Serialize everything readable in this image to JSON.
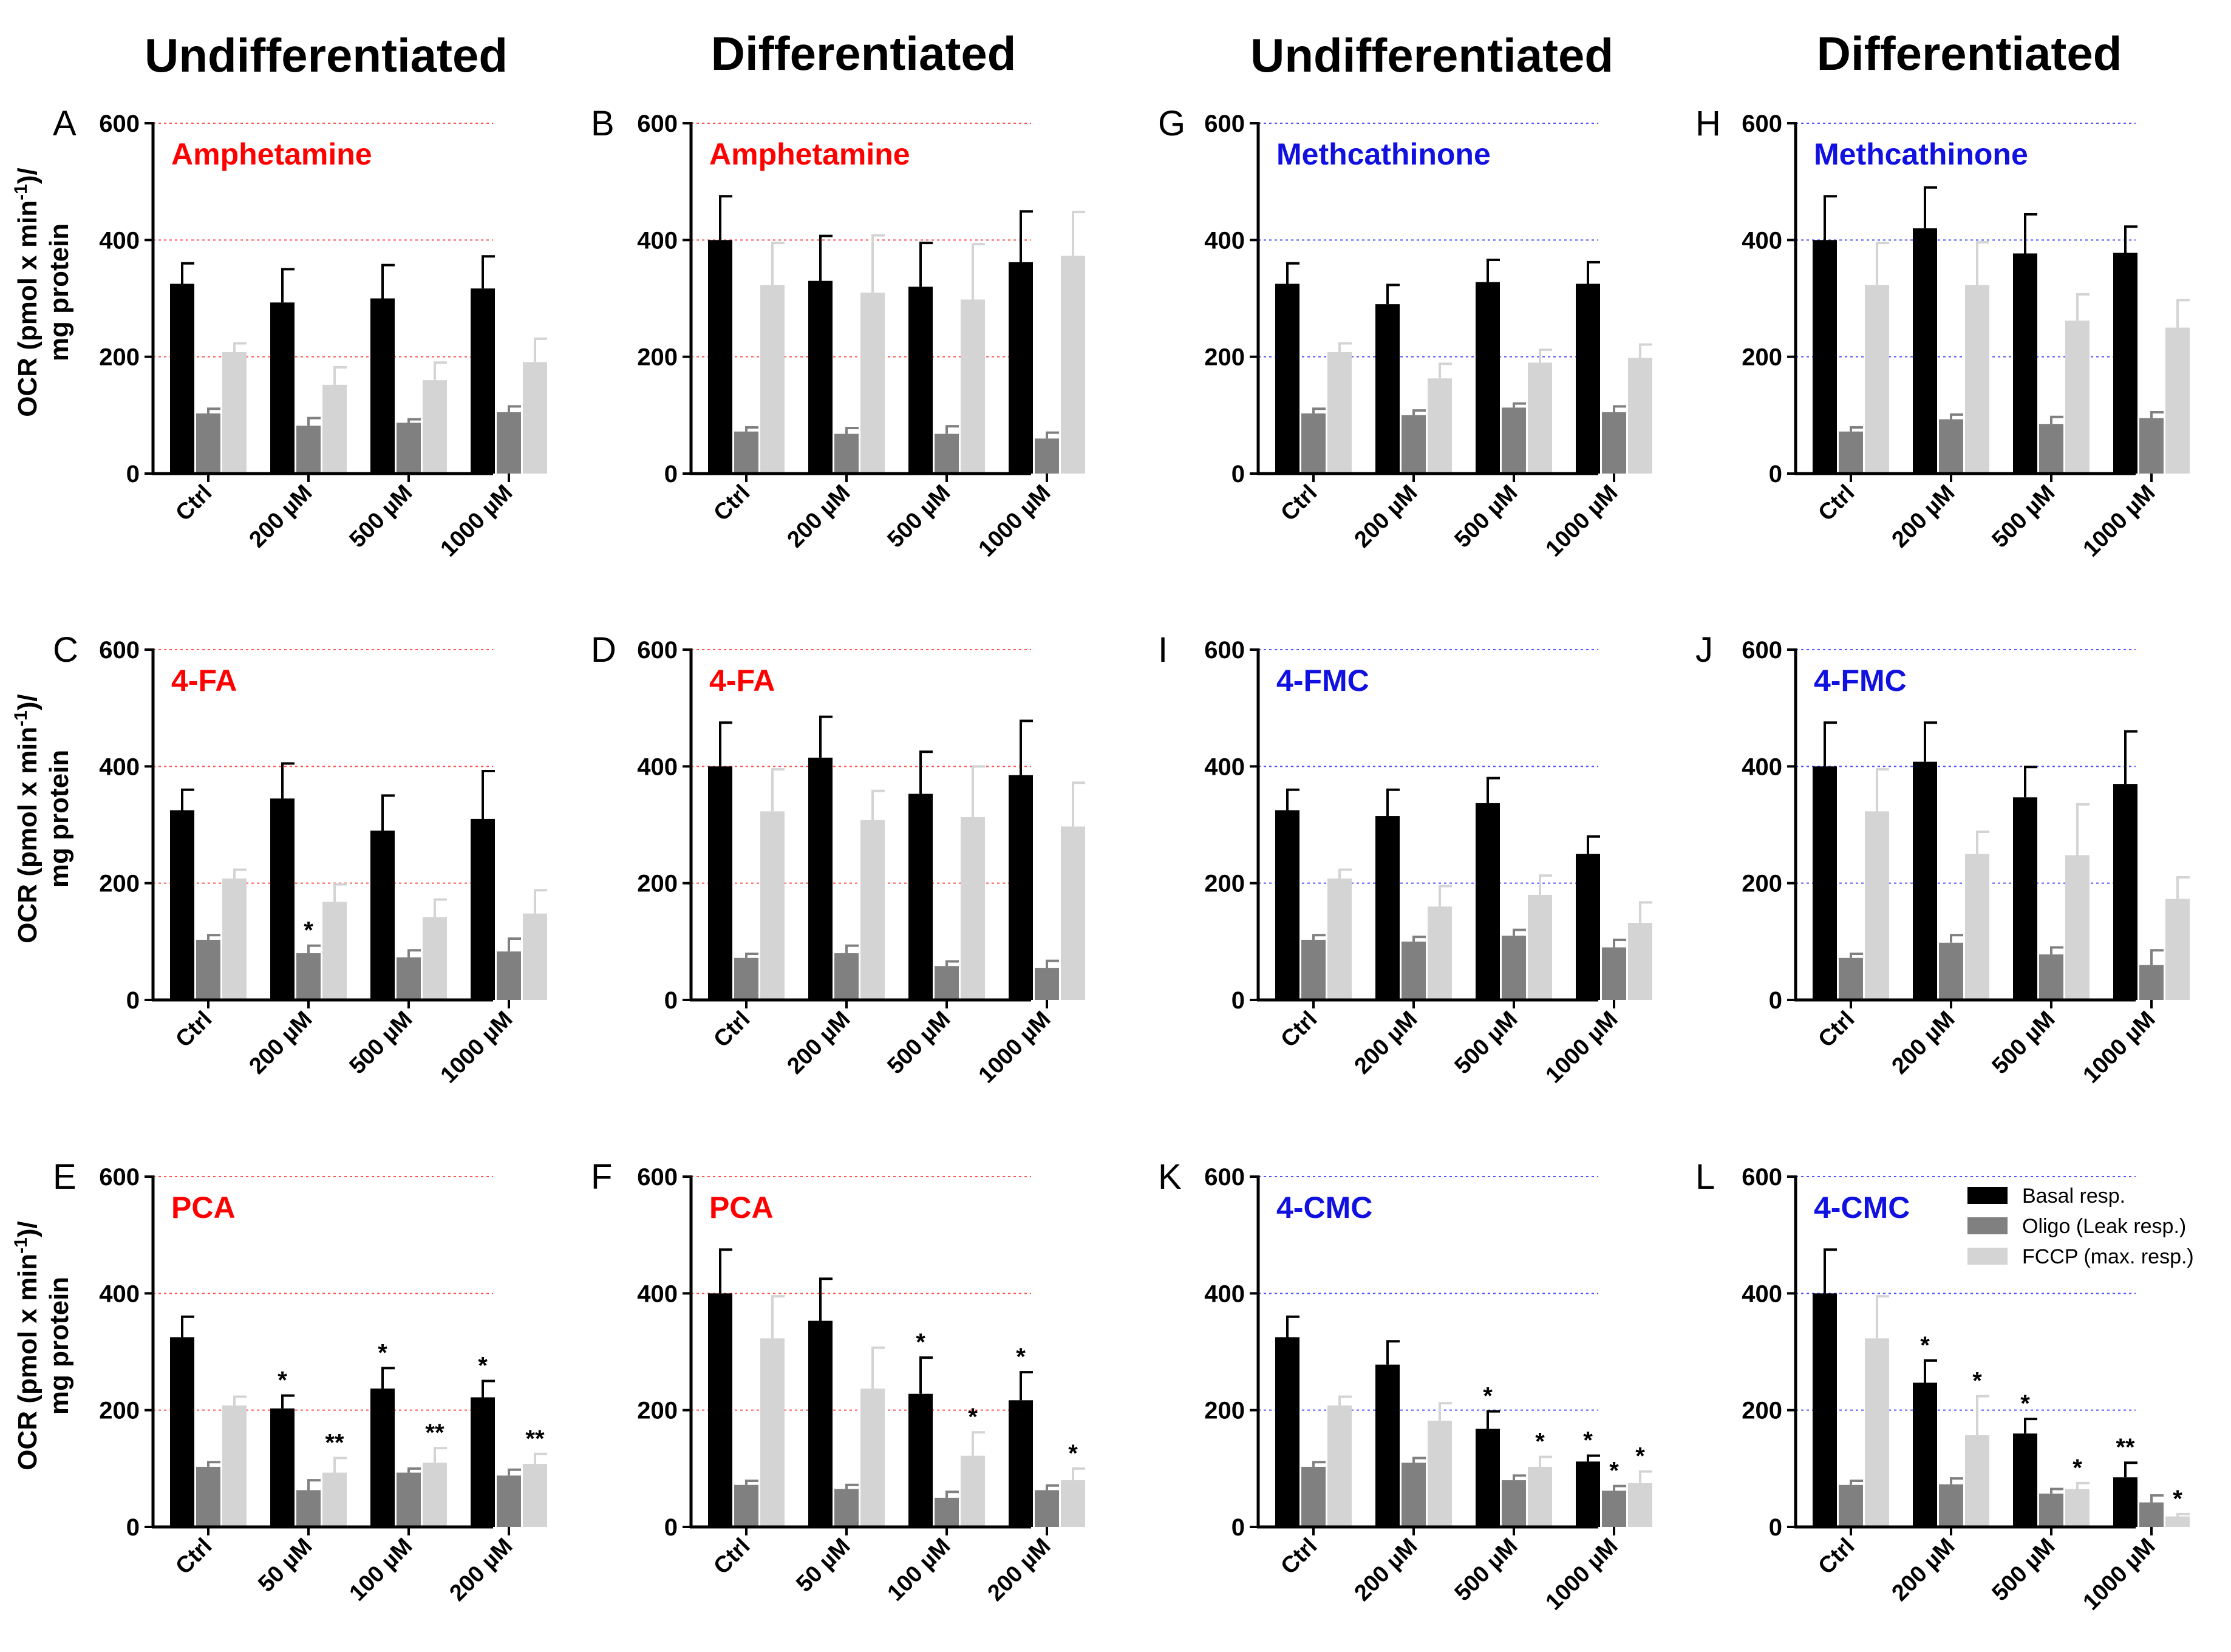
{
  "column_headers": [
    "Undifferentiated",
    "Differentiated",
    "Undifferentiated",
    "Differentiated"
  ],
  "y_axis_label": {
    "line1": "OCR (pmol x min",
    "superscript": "-1",
    "line1_end": ")/",
    "line2": "mg protein"
  },
  "colors": {
    "basal": "#000000",
    "oligo": "#808080",
    "fccp": "#d4d4d4",
    "amphetamine_group": "#ff0000",
    "cathinone_group": "#1010e0",
    "grid_red": "#ff5050",
    "grid_blue": "#5050ff"
  },
  "legend": [
    "Basal resp.",
    "Oligo (Leak resp.)",
    "FCCP (max. resp.)"
  ],
  "chart_data": [
    {
      "panel": "A",
      "title": "Amphetamine",
      "group": "amphetamine",
      "type": "bar",
      "ylim": [
        0,
        600
      ],
      "yticks": [
        0,
        200,
        400,
        600
      ],
      "categories": [
        "Ctrl",
        "200 µM",
        "500 µM",
        "1000 µM"
      ],
      "series": [
        {
          "name": "Basal resp.",
          "values": [
            325,
            293,
            300,
            317
          ],
          "errors": [
            35,
            57,
            57,
            55
          ]
        },
        {
          "name": "Oligo (Leak resp.)",
          "values": [
            103,
            82,
            87,
            105
          ],
          "errors": [
            8,
            13,
            6,
            10
          ]
        },
        {
          "name": "FCCP (max. resp.)",
          "values": [
            208,
            152,
            160,
            191
          ],
          "errors": [
            15,
            30,
            30,
            40
          ]
        }
      ],
      "stars": [
        [
          "",
          "",
          ""
        ],
        [
          "",
          "",
          ""
        ],
        [
          "",
          "",
          ""
        ],
        [
          "",
          "",
          ""
        ]
      ]
    },
    {
      "panel": "B",
      "title": "Amphetamine",
      "group": "amphetamine",
      "type": "bar",
      "ylim": [
        0,
        600
      ],
      "yticks": [
        0,
        200,
        400,
        600
      ],
      "categories": [
        "Ctrl",
        "200 µM",
        "500 µM",
        "1000 µM"
      ],
      "series": [
        {
          "name": "Basal resp.",
          "values": [
            400,
            330,
            320,
            362
          ],
          "errors": [
            75,
            77,
            75,
            87
          ]
        },
        {
          "name": "Oligo (Leak resp.)",
          "values": [
            72,
            68,
            68,
            60
          ],
          "errors": [
            7,
            10,
            13,
            10
          ]
        },
        {
          "name": "FCCP (max. resp.)",
          "values": [
            323,
            310,
            298,
            373
          ],
          "errors": [
            72,
            98,
            95,
            75
          ]
        }
      ],
      "stars": [
        [
          "",
          "",
          ""
        ],
        [
          "",
          "",
          ""
        ],
        [
          "",
          "",
          ""
        ],
        [
          "",
          "",
          ""
        ]
      ]
    },
    {
      "panel": "G",
      "title": "Methcathinone",
      "group": "cathinone",
      "type": "bar",
      "ylim": [
        0,
        600
      ],
      "yticks": [
        0,
        200,
        400,
        600
      ],
      "categories": [
        "Ctrl",
        "200 µM",
        "500 µM",
        "1000 µM"
      ],
      "series": [
        {
          "name": "Basal resp.",
          "values": [
            325,
            290,
            328,
            325
          ],
          "errors": [
            35,
            33,
            38,
            37
          ]
        },
        {
          "name": "Oligo (Leak resp.)",
          "values": [
            103,
            100,
            113,
            105
          ],
          "errors": [
            8,
            8,
            7,
            10
          ]
        },
        {
          "name": "FCCP (max. resp.)",
          "values": [
            208,
            163,
            190,
            198
          ],
          "errors": [
            15,
            25,
            22,
            23
          ]
        }
      ],
      "stars": [
        [
          "",
          "",
          ""
        ],
        [
          "",
          "",
          ""
        ],
        [
          "",
          "",
          ""
        ],
        [
          "",
          "",
          ""
        ]
      ]
    },
    {
      "panel": "H",
      "title": "Methcathinone",
      "group": "cathinone",
      "type": "bar",
      "ylim": [
        0,
        600
      ],
      "yticks": [
        0,
        200,
        400,
        600
      ],
      "categories": [
        "Ctrl",
        "200 µM",
        "500 µM",
        "1000 µM"
      ],
      "series": [
        {
          "name": "Basal resp.",
          "values": [
            400,
            420,
            377,
            378
          ],
          "errors": [
            75,
            70,
            67,
            45
          ]
        },
        {
          "name": "Oligo (Leak resp.)",
          "values": [
            72,
            93,
            85,
            95
          ],
          "errors": [
            7,
            8,
            12,
            10
          ]
        },
        {
          "name": "FCCP (max. resp.)",
          "values": [
            323,
            323,
            262,
            250
          ],
          "errors": [
            72,
            73,
            45,
            47
          ]
        }
      ],
      "stars": [
        [
          "",
          "",
          ""
        ],
        [
          "",
          "",
          ""
        ],
        [
          "",
          "",
          ""
        ],
        [
          "",
          "",
          ""
        ]
      ]
    },
    {
      "panel": "C",
      "title": "4-FA",
      "group": "amphetamine",
      "type": "bar",
      "ylim": [
        0,
        600
      ],
      "yticks": [
        0,
        200,
        400,
        600
      ],
      "categories": [
        "Ctrl",
        "200 µM",
        "500 µM",
        "1000 µM"
      ],
      "series": [
        {
          "name": "Basal resp.",
          "values": [
            325,
            345,
            290,
            310
          ],
          "errors": [
            35,
            60,
            60,
            82
          ]
        },
        {
          "name": "Oligo (Leak resp.)",
          "values": [
            103,
            80,
            73,
            83
          ],
          "errors": [
            8,
            13,
            12,
            22
          ]
        },
        {
          "name": "FCCP (max. resp.)",
          "values": [
            208,
            168,
            142,
            148
          ],
          "errors": [
            15,
            30,
            30,
            40
          ]
        }
      ],
      "stars": [
        [
          "",
          "",
          ""
        ],
        [
          "",
          "*",
          ""
        ],
        [
          "",
          "",
          ""
        ],
        [
          "",
          "",
          ""
        ]
      ]
    },
    {
      "panel": "D",
      "title": "4-FA",
      "group": "amphetamine",
      "type": "bar",
      "ylim": [
        0,
        600
      ],
      "yticks": [
        0,
        200,
        400,
        600
      ],
      "categories": [
        "Ctrl",
        "200 µM",
        "500 µM",
        "1000 µM"
      ],
      "series": [
        {
          "name": "Basal resp.",
          "values": [
            400,
            415,
            353,
            385
          ],
          "errors": [
            75,
            70,
            72,
            93
          ]
        },
        {
          "name": "Oligo (Leak resp.)",
          "values": [
            72,
            80,
            58,
            55
          ],
          "errors": [
            7,
            13,
            8,
            12
          ]
        },
        {
          "name": "FCCP (max. resp.)",
          "values": [
            323,
            308,
            313,
            297
          ],
          "errors": [
            72,
            50,
            87,
            75
          ]
        }
      ],
      "stars": [
        [
          "",
          "",
          ""
        ],
        [
          "",
          "",
          ""
        ],
        [
          "",
          "",
          ""
        ],
        [
          "",
          "",
          ""
        ]
      ]
    },
    {
      "panel": "I",
      "title": "4-FMC",
      "group": "cathinone",
      "type": "bar",
      "ylim": [
        0,
        600
      ],
      "yticks": [
        0,
        200,
        400,
        600
      ],
      "categories": [
        "Ctrl",
        "200 µM",
        "500 µM",
        "1000 µM"
      ],
      "series": [
        {
          "name": "Basal resp.",
          "values": [
            325,
            315,
            337,
            250
          ],
          "errors": [
            35,
            45,
            43,
            30
          ]
        },
        {
          "name": "Oligo (Leak resp.)",
          "values": [
            103,
            100,
            110,
            90
          ],
          "errors": [
            8,
            8,
            10,
            13
          ]
        },
        {
          "name": "FCCP (max. resp.)",
          "values": [
            208,
            160,
            180,
            132
          ],
          "errors": [
            15,
            35,
            33,
            35
          ]
        }
      ],
      "stars": [
        [
          "",
          "",
          ""
        ],
        [
          "",
          "",
          ""
        ],
        [
          "",
          "",
          ""
        ],
        [
          "",
          "",
          ""
        ]
      ]
    },
    {
      "panel": "J",
      "title": "4-FMC",
      "group": "cathinone",
      "type": "bar",
      "ylim": [
        0,
        600
      ],
      "yticks": [
        0,
        200,
        400,
        600
      ],
      "categories": [
        "Ctrl",
        "200 µM",
        "500 µM",
        "1000 µM"
      ],
      "series": [
        {
          "name": "Basal resp.",
          "values": [
            400,
            408,
            347,
            370
          ],
          "errors": [
            75,
            67,
            52,
            90
          ]
        },
        {
          "name": "Oligo (Leak resp.)",
          "values": [
            72,
            98,
            78,
            60
          ],
          "errors": [
            7,
            13,
            12,
            25
          ]
        },
        {
          "name": "FCCP (max. resp.)",
          "values": [
            323,
            250,
            248,
            173
          ],
          "errors": [
            72,
            38,
            87,
            37
          ]
        }
      ],
      "stars": [
        [
          "",
          "",
          ""
        ],
        [
          "",
          "",
          ""
        ],
        [
          "",
          "",
          ""
        ],
        [
          "",
          "",
          ""
        ]
      ]
    },
    {
      "panel": "E",
      "title": "PCA",
      "group": "amphetamine",
      "type": "bar",
      "ylim": [
        0,
        600
      ],
      "yticks": [
        0,
        200,
        400,
        600
      ],
      "categories": [
        "Ctrl",
        "50 µM",
        "100 µM",
        "200 µM"
      ],
      "series": [
        {
          "name": "Basal resp.",
          "values": [
            325,
            203,
            237,
            222
          ],
          "errors": [
            35,
            22,
            35,
            28
          ]
        },
        {
          "name": "Oligo (Leak resp.)",
          "values": [
            103,
            63,
            93,
            88
          ],
          "errors": [
            8,
            17,
            7,
            10
          ]
        },
        {
          "name": "FCCP (max. resp.)",
          "values": [
            208,
            93,
            110,
            108
          ],
          "errors": [
            15,
            25,
            25,
            17
          ]
        }
      ],
      "stars": [
        [
          "",
          "",
          ""
        ],
        [
          "*",
          "",
          "**"
        ],
        [
          "*",
          "",
          "**"
        ],
        [
          "*",
          "",
          "**"
        ]
      ]
    },
    {
      "panel": "F",
      "title": "PCA",
      "group": "amphetamine",
      "type": "bar",
      "ylim": [
        0,
        600
      ],
      "yticks": [
        0,
        200,
        400,
        600
      ],
      "categories": [
        "Ctrl",
        "50 µM",
        "100 µM",
        "200 µM"
      ],
      "series": [
        {
          "name": "Basal resp.",
          "values": [
            400,
            353,
            228,
            217
          ],
          "errors": [
            75,
            72,
            62,
            48
          ]
        },
        {
          "name": "Oligo (Leak resp.)",
          "values": [
            72,
            65,
            50,
            63
          ],
          "errors": [
            7,
            7,
            10,
            8
          ]
        },
        {
          "name": "FCCP (max. resp.)",
          "values": [
            323,
            237,
            122,
            80
          ],
          "errors": [
            72,
            70,
            40,
            20
          ]
        }
      ],
      "stars": [
        [
          "",
          "",
          ""
        ],
        [
          "",
          "",
          ""
        ],
        [
          "*",
          "",
          "*"
        ],
        [
          "*",
          "",
          "*"
        ]
      ]
    },
    {
      "panel": "K",
      "title": "4-CMC",
      "group": "cathinone",
      "type": "bar",
      "ylim": [
        0,
        600
      ],
      "yticks": [
        0,
        200,
        400,
        600
      ],
      "categories": [
        "Ctrl",
        "200 µM",
        "500 µM",
        "1000 µM"
      ],
      "series": [
        {
          "name": "Basal resp.",
          "values": [
            325,
            278,
            168,
            112
          ],
          "errors": [
            35,
            40,
            30,
            10
          ]
        },
        {
          "name": "Oligo (Leak resp.)",
          "values": [
            103,
            110,
            80,
            62
          ],
          "errors": [
            8,
            8,
            8,
            8
          ]
        },
        {
          "name": "FCCP (max. resp.)",
          "values": [
            208,
            182,
            103,
            75
          ],
          "errors": [
            15,
            30,
            17,
            20
          ]
        }
      ],
      "stars": [
        [
          "",
          "",
          ""
        ],
        [
          "",
          "",
          ""
        ],
        [
          "*",
          "",
          "*"
        ],
        [
          "*",
          "*",
          "*"
        ]
      ]
    },
    {
      "panel": "L",
      "title": "4-CMC",
      "group": "cathinone",
      "type": "bar",
      "ylim": [
        0,
        600
      ],
      "yticks": [
        0,
        200,
        400,
        600
      ],
      "categories": [
        "Ctrl",
        "200 µM",
        "500 µM",
        "1000 µM"
      ],
      "series": [
        {
          "name": "Basal resp.",
          "values": [
            400,
            247,
            160,
            85
          ],
          "errors": [
            75,
            38,
            25,
            25
          ]
        },
        {
          "name": "Oligo (Leak resp.)",
          "values": [
            72,
            73,
            57,
            42
          ],
          "errors": [
            7,
            10,
            8,
            12
          ]
        },
        {
          "name": "FCCP (max. resp.)",
          "values": [
            323,
            157,
            65,
            18
          ],
          "errors": [
            72,
            67,
            10,
            4
          ]
        }
      ],
      "stars": [
        [
          "",
          "",
          ""
        ],
        [
          "*",
          "",
          "*"
        ],
        [
          "*",
          "",
          "*"
        ],
        [
          "**",
          "",
          "*"
        ]
      ]
    }
  ]
}
